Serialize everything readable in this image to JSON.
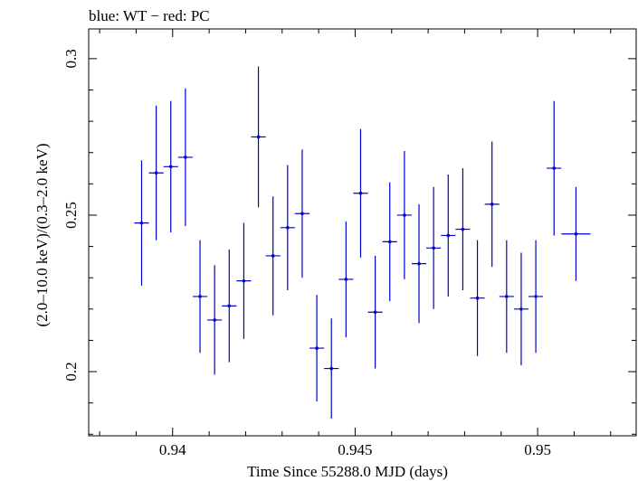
{
  "chart_data": {
    "type": "scatter",
    "title": "blue: WT − red: PC",
    "xlabel": "Time Since 55288.0 MJD (days)",
    "ylabel": "(2.0–10.0 keV)/(0.3–2.0 keV)",
    "xlim": [
      0.9377,
      0.9527
    ],
    "ylim": [
      0.1795,
      0.3095
    ],
    "x_ticks": [
      {
        "value": 0.94,
        "label": "0.94"
      },
      {
        "value": 0.945,
        "label": "0.945"
      },
      {
        "value": 0.95,
        "label": "0.95"
      }
    ],
    "y_ticks": [
      {
        "value": 0.2,
        "label": "0.2"
      },
      {
        "value": 0.25,
        "label": "0.25"
      },
      {
        "value": 0.3,
        "label": "0.3"
      }
    ],
    "x_minor_step": 0.001,
    "y_minor_step": 0.01,
    "grid": false,
    "series": [
      {
        "color": "#0000cc",
        "points": [
          {
            "x": 0.93915,
            "y": 0.2475,
            "xerr": 0.0002,
            "yerr": 0.02
          },
          {
            "x": 0.93955,
            "y": 0.2635,
            "xerr": 0.0002,
            "yerr": 0.0215
          },
          {
            "x": 0.93995,
            "y": 0.2655,
            "xerr": 0.0002,
            "yerr": 0.021
          },
          {
            "x": 0.94035,
            "y": 0.2685,
            "xerr": 0.0002,
            "yerr": 0.022
          },
          {
            "x": 0.94075,
            "y": 0.224,
            "xerr": 0.0002,
            "yerr": 0.018
          },
          {
            "x": 0.94115,
            "y": 0.2165,
            "xerr": 0.0002,
            "yerr": 0.0175
          },
          {
            "x": 0.94155,
            "y": 0.221,
            "xerr": 0.0002,
            "yerr": 0.018
          },
          {
            "x": 0.94195,
            "y": 0.229,
            "xerr": 0.0002,
            "yerr": 0.0185
          },
          {
            "x": 0.94235,
            "y": 0.275,
            "xerr": 0.0002,
            "yerr": 0.0225
          },
          {
            "x": 0.94275,
            "y": 0.237,
            "xerr": 0.0002,
            "yerr": 0.019
          },
          {
            "x": 0.94315,
            "y": 0.246,
            "xerr": 0.0002,
            "yerr": 0.02
          },
          {
            "x": 0.94355,
            "y": 0.2505,
            "xerr": 0.0002,
            "yerr": 0.0205
          },
          {
            "x": 0.94395,
            "y": 0.2075,
            "xerr": 0.0002,
            "yerr": 0.017
          },
          {
            "x": 0.94435,
            "y": 0.201,
            "xerr": 0.0002,
            "yerr": 0.016
          },
          {
            "x": 0.94475,
            "y": 0.2295,
            "xerr": 0.0002,
            "yerr": 0.0185
          },
          {
            "x": 0.94515,
            "y": 0.257,
            "xerr": 0.0002,
            "yerr": 0.0205
          },
          {
            "x": 0.94555,
            "y": 0.219,
            "xerr": 0.0002,
            "yerr": 0.018
          },
          {
            "x": 0.94595,
            "y": 0.2415,
            "xerr": 0.0002,
            "yerr": 0.019
          },
          {
            "x": 0.94635,
            "y": 0.25,
            "xerr": 0.0002,
            "yerr": 0.0205
          },
          {
            "x": 0.94675,
            "y": 0.2345,
            "xerr": 0.0002,
            "yerr": 0.019
          },
          {
            "x": 0.94715,
            "y": 0.2395,
            "xerr": 0.0002,
            "yerr": 0.0195
          },
          {
            "x": 0.94755,
            "y": 0.2435,
            "xerr": 0.0002,
            "yerr": 0.0195
          },
          {
            "x": 0.94795,
            "y": 0.2455,
            "xerr": 0.0002,
            "yerr": 0.0195
          },
          {
            "x": 0.94835,
            "y": 0.2235,
            "xerr": 0.0002,
            "yerr": 0.0185
          },
          {
            "x": 0.94875,
            "y": 0.2535,
            "xerr": 0.0002,
            "yerr": 0.02
          },
          {
            "x": 0.94915,
            "y": 0.224,
            "xerr": 0.0002,
            "yerr": 0.018
          },
          {
            "x": 0.94955,
            "y": 0.22,
            "xerr": 0.0002,
            "yerr": 0.018
          },
          {
            "x": 0.94995,
            "y": 0.224,
            "xerr": 0.0002,
            "yerr": 0.018
          },
          {
            "x": 0.95045,
            "y": 0.265,
            "xerr": 0.0002,
            "yerr": 0.0215
          },
          {
            "x": 0.95105,
            "y": 0.244,
            "xerr": 0.0004,
            "yerr": 0.015
          }
        ]
      }
    ]
  }
}
